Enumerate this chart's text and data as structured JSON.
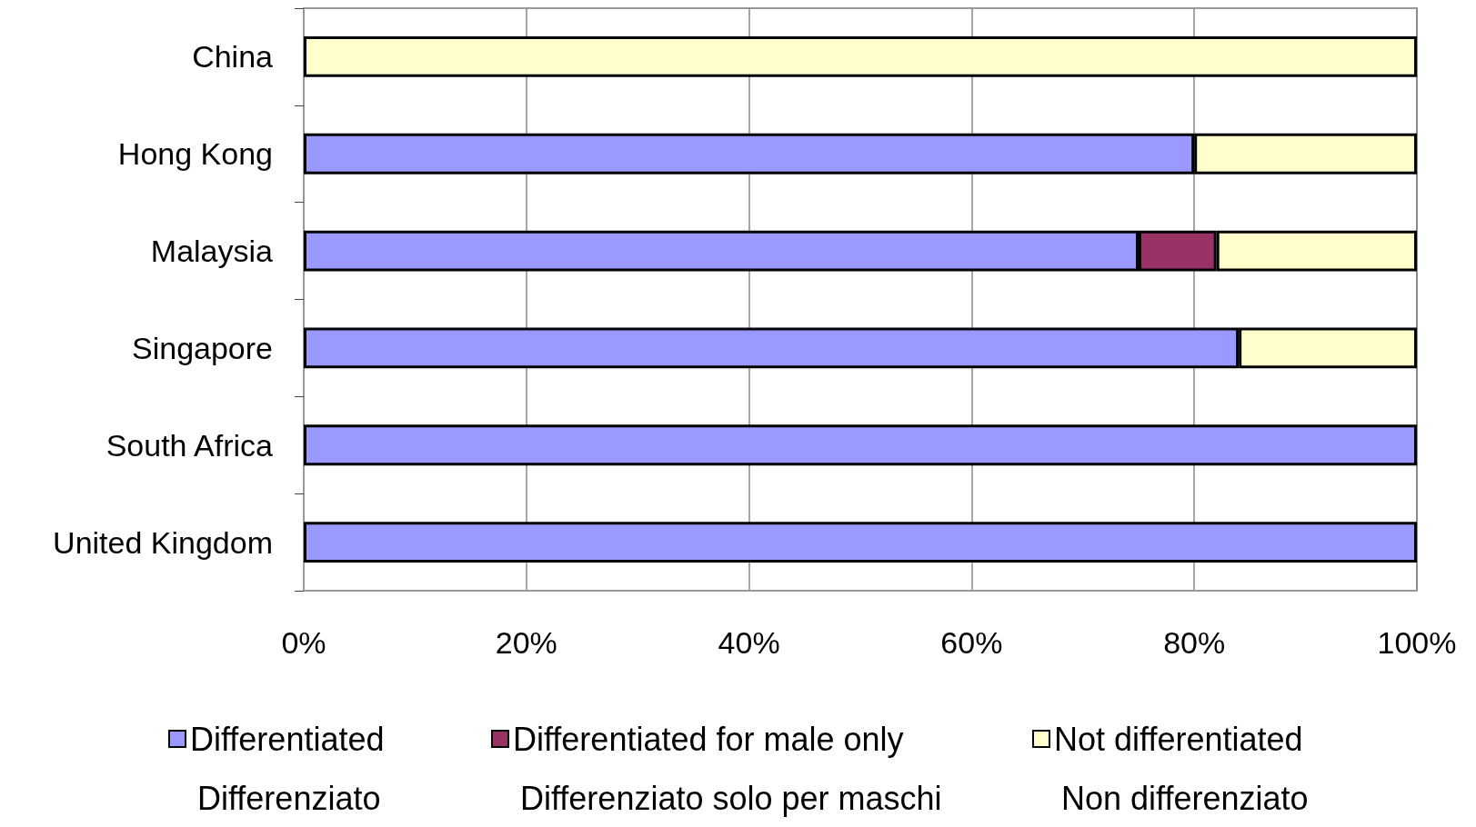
{
  "chart_data": {
    "type": "bar",
    "orientation": "horizontal",
    "stacked": true,
    "categories": [
      "China",
      "Hong Kong",
      "Malaysia",
      "Singapore",
      "South Africa",
      "United Kingdom"
    ],
    "series": [
      {
        "name": "Differentiated",
        "color": "#9999ff",
        "values": [
          0,
          80,
          75,
          84,
          100,
          100
        ]
      },
      {
        "name": "Differentiated for male only",
        "color": "#993366",
        "values": [
          0,
          0,
          7,
          0,
          0,
          0
        ]
      },
      {
        "name": "Not differentiated",
        "color": "#ffffcc",
        "values": [
          100,
          20,
          18,
          16,
          0,
          0
        ]
      }
    ],
    "xlim": [
      0,
      100
    ],
    "xticks": [
      {
        "value": 0,
        "label": "0%"
      },
      {
        "value": 20,
        "label": "20%"
      },
      {
        "value": 40,
        "label": "40%"
      },
      {
        "value": 60,
        "label": "60%"
      },
      {
        "value": 80,
        "label": "80%"
      },
      {
        "value": 100,
        "label": "100%"
      }
    ],
    "grid": "x",
    "legend": "bottom",
    "annotations": [
      "Differenziato",
      "Differenziato solo per maschi",
      "Non differenziato"
    ]
  }
}
